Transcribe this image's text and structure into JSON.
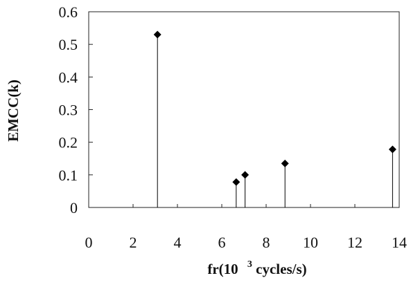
{
  "chart_data": {
    "type": "scatter",
    "style": "stem",
    "title": "",
    "xlabel": {
      "prefix": "fr(10",
      "superscript": "3",
      "suffix": " cycles/s)"
    },
    "ylabel": "EMCC(k)",
    "xlim": [
      0,
      14
    ],
    "ylim": [
      0,
      0.6
    ],
    "x_ticks": [
      0,
      2,
      4,
      6,
      8,
      10,
      12,
      14
    ],
    "y_ticks": [
      0,
      0.1,
      0.2,
      0.3,
      0.4,
      0.5,
      0.6
    ],
    "x_tick_labels": [
      "0",
      "2",
      "4",
      "6",
      "8",
      "10",
      "12",
      "14"
    ],
    "y_tick_labels": [
      "0",
      "0.1",
      "0.2",
      "0.3",
      "0.4",
      "0.5",
      "0.6"
    ],
    "grid": false,
    "marker": "diamond",
    "color": "#000000",
    "points": [
      {
        "x": 3.1,
        "y": 0.53
      },
      {
        "x": 6.65,
        "y": 0.078
      },
      {
        "x": 7.05,
        "y": 0.1
      },
      {
        "x": 8.85,
        "y": 0.135
      },
      {
        "x": 13.7,
        "y": 0.178
      }
    ]
  }
}
